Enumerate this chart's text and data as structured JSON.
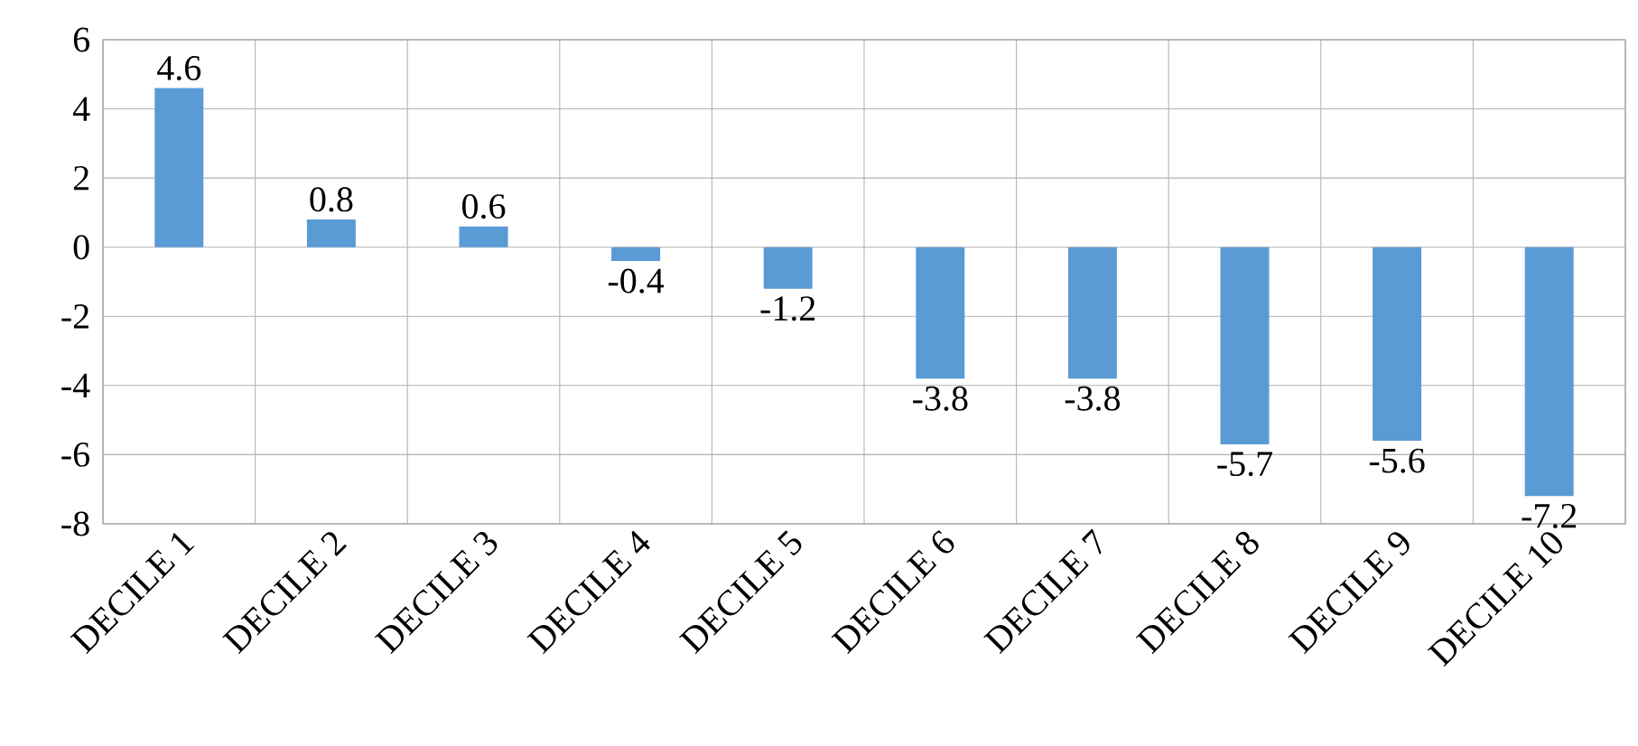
{
  "chart_data": {
    "type": "bar",
    "categories": [
      "DECILE 1",
      "DECILE 2",
      "DECILE 3",
      "DECILE 4",
      "DECILE 5",
      "DECILE 6",
      "DECILE 7",
      "DECILE 8",
      "DECILE 9",
      "DECILE 10"
    ],
    "values": [
      4.6,
      0.8,
      0.6,
      -0.4,
      -1.2,
      -3.8,
      -3.8,
      -5.7,
      -5.6,
      -7.2
    ],
    "color": "#5b9bd5",
    "ylim": [
      -8,
      6
    ],
    "yticks": [
      -8,
      -6,
      -4,
      -2,
      0,
      2,
      4,
      6
    ],
    "grid": true,
    "data_labels": true
  }
}
